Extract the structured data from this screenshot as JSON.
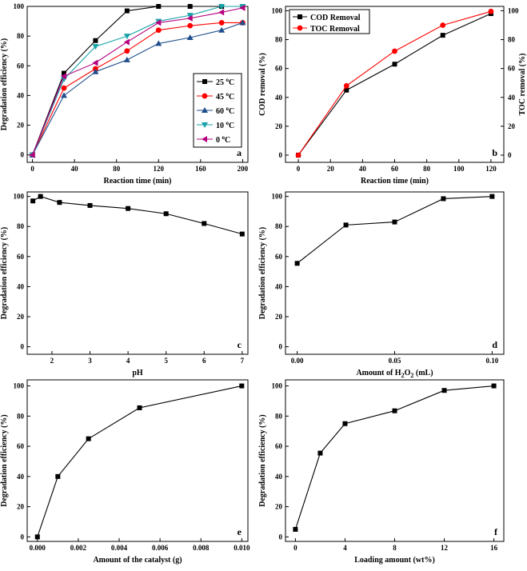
{
  "chart_data": [
    {
      "id": "a",
      "type": "line",
      "panel_label": "a",
      "title": "",
      "xlabel": "Reaction time (min)",
      "ylabel": "Degradation efficiency (%)",
      "xlim": [
        -5,
        205
      ],
      "ylim": [
        -5,
        100
      ],
      "xticks": [
        0,
        40,
        80,
        120,
        160,
        200
      ],
      "yticks": [
        0,
        20,
        40,
        60,
        80,
        100
      ],
      "legend_position": "right-middle",
      "series": [
        {
          "name": "25 °C",
          "label_main": "25 ",
          "label_sup": "o",
          "label_end": "C",
          "color": "#000000",
          "marker": "square",
          "x": [
            0,
            30,
            60,
            90,
            120,
            150,
            180,
            200
          ],
          "y": [
            0,
            55,
            77,
            97,
            100,
            100,
            100,
            100
          ]
        },
        {
          "name": "45 °C",
          "label_main": "45 ",
          "label_sup": "o",
          "label_end": "C",
          "color": "#ff0000",
          "marker": "circle",
          "x": [
            0,
            30,
            60,
            90,
            120,
            150,
            180,
            200
          ],
          "y": [
            0,
            45,
            58,
            70,
            84,
            87,
            89,
            89
          ]
        },
        {
          "name": "60 °C",
          "label_main": "60 ",
          "label_sup": "o",
          "label_end": "C",
          "color": "#1f4e8c",
          "marker": "triangle-up",
          "x": [
            0,
            30,
            60,
            90,
            120,
            150,
            180,
            200
          ],
          "y": [
            0,
            40,
            56,
            64,
            75,
            79,
            84,
            89
          ]
        },
        {
          "name": "10 °C",
          "label_main": "10 ",
          "label_sup": "o",
          "label_end": "C",
          "color": "#17a2a8",
          "marker": "triangle-down",
          "x": [
            0,
            30,
            60,
            90,
            120,
            150,
            180,
            200
          ],
          "y": [
            0,
            51,
            73,
            80,
            90,
            94,
            100,
            100
          ]
        },
        {
          "name": "0 °C",
          "label_main": "0 ",
          "label_sup": "o",
          "label_end": "C",
          "color": "#b5007f",
          "marker": "triangle-left",
          "x": [
            0,
            30,
            60,
            90,
            120,
            150,
            180,
            200
          ],
          "y": [
            0,
            53,
            62,
            76,
            89,
            92,
            96,
            99
          ]
        }
      ]
    },
    {
      "id": "b",
      "type": "line",
      "panel_label": "b",
      "title": "",
      "xlabel": "Reaction time (min)",
      "ylabel": "COD removal (%)",
      "ylabel_right": "TOC removal (%)",
      "xlim": [
        -8,
        128
      ],
      "ylim": [
        -5,
        103
      ],
      "xticks": [
        0,
        20,
        40,
        60,
        80,
        100,
        120
      ],
      "yticks": [
        0,
        20,
        40,
        60,
        80,
        100
      ],
      "yticks_right": [
        0,
        20,
        40,
        60,
        80,
        100
      ],
      "legend_position": "top-left",
      "series": [
        {
          "name": "COD Removal",
          "color": "#000000",
          "marker": "square",
          "x": [
            0,
            30,
            60,
            90,
            120
          ],
          "y": [
            0,
            45,
            63,
            83,
            98
          ]
        },
        {
          "name": "TOC Removal",
          "color": "#ff0000",
          "marker": "circle",
          "x": [
            0,
            30,
            60,
            90,
            120
          ],
          "y": [
            0,
            48,
            72,
            90,
            99.5
          ]
        }
      ]
    },
    {
      "id": "c",
      "type": "line",
      "panel_label": "c",
      "title": "",
      "xlabel": "pH",
      "ylabel": "Degradation efficiency (%)",
      "xlim": [
        1.35,
        7.15
      ],
      "ylim": [
        -5,
        103
      ],
      "xticks": [
        2,
        3,
        4,
        5,
        6,
        7
      ],
      "yticks": [
        0,
        20,
        40,
        60,
        80,
        100
      ],
      "series": [
        {
          "name": "degradation",
          "color": "#000000",
          "marker": "square",
          "x": [
            1.5,
            1.7,
            2.2,
            3,
            4,
            5,
            6,
            7
          ],
          "y": [
            97,
            100,
            96,
            94,
            92,
            88.5,
            82,
            75
          ]
        }
      ]
    },
    {
      "id": "d",
      "type": "line",
      "panel_label": "d",
      "title": "",
      "xlabel_main": "Amount of H",
      "xlabel_sub1": "2",
      "xlabel_mid": "O",
      "xlabel_sub2": "2",
      "xlabel_end": " (mL)",
      "ylabel": "Degradation efficiency (%)",
      "xlim": [
        -0.006,
        0.106
      ],
      "ylim": [
        -5,
        103
      ],
      "xticks": [
        0.0,
        0.05,
        0.1
      ],
      "xtick_labels": [
        "0.00",
        "0.05",
        "0.10"
      ],
      "yticks": [
        0,
        20,
        40,
        60,
        80,
        100
      ],
      "series": [
        {
          "name": "degradation",
          "color": "#000000",
          "marker": "square",
          "x": [
            0,
            0.025,
            0.05,
            0.075,
            0.1
          ],
          "y": [
            55.5,
            81,
            83,
            98.5,
            100
          ]
        }
      ]
    },
    {
      "id": "e",
      "type": "line",
      "panel_label": "e",
      "title": "",
      "xlabel": "Amount of the catalyst (g)",
      "ylabel": "Degradation efficiency (%)",
      "xlim": [
        -0.0005,
        0.0103
      ],
      "ylim": [
        -3,
        104
      ],
      "xticks": [
        0.0,
        0.002,
        0.004,
        0.006,
        0.008,
        0.01
      ],
      "xtick_labels": [
        "0.000",
        "0.002",
        "0.004",
        "0.006",
        "0.008",
        "0.010"
      ],
      "yticks": [
        0,
        20,
        40,
        60,
        80,
        100
      ],
      "series": [
        {
          "name": "degradation",
          "color": "#000000",
          "marker": "square",
          "x": [
            0,
            0.001,
            0.0025,
            0.005,
            0.01
          ],
          "y": [
            0,
            40,
            65,
            85.5,
            100
          ]
        }
      ]
    },
    {
      "id": "f",
      "type": "line",
      "panel_label": "f",
      "title": "",
      "xlabel": "Loading amount (wt%)",
      "ylabel": "Degradation efficiency (%)",
      "xlim": [
        -0.8,
        16.8
      ],
      "ylim": [
        -3,
        104
      ],
      "xticks": [
        0,
        4,
        8,
        12,
        16
      ],
      "yticks": [
        0,
        20,
        40,
        60,
        80,
        100
      ],
      "series": [
        {
          "name": "degradation",
          "color": "#000000",
          "marker": "square",
          "x": [
            0,
            2,
            4,
            8,
            12,
            16
          ],
          "y": [
            5,
            55.5,
            75,
            83.5,
            97,
            100
          ]
        }
      ]
    }
  ]
}
